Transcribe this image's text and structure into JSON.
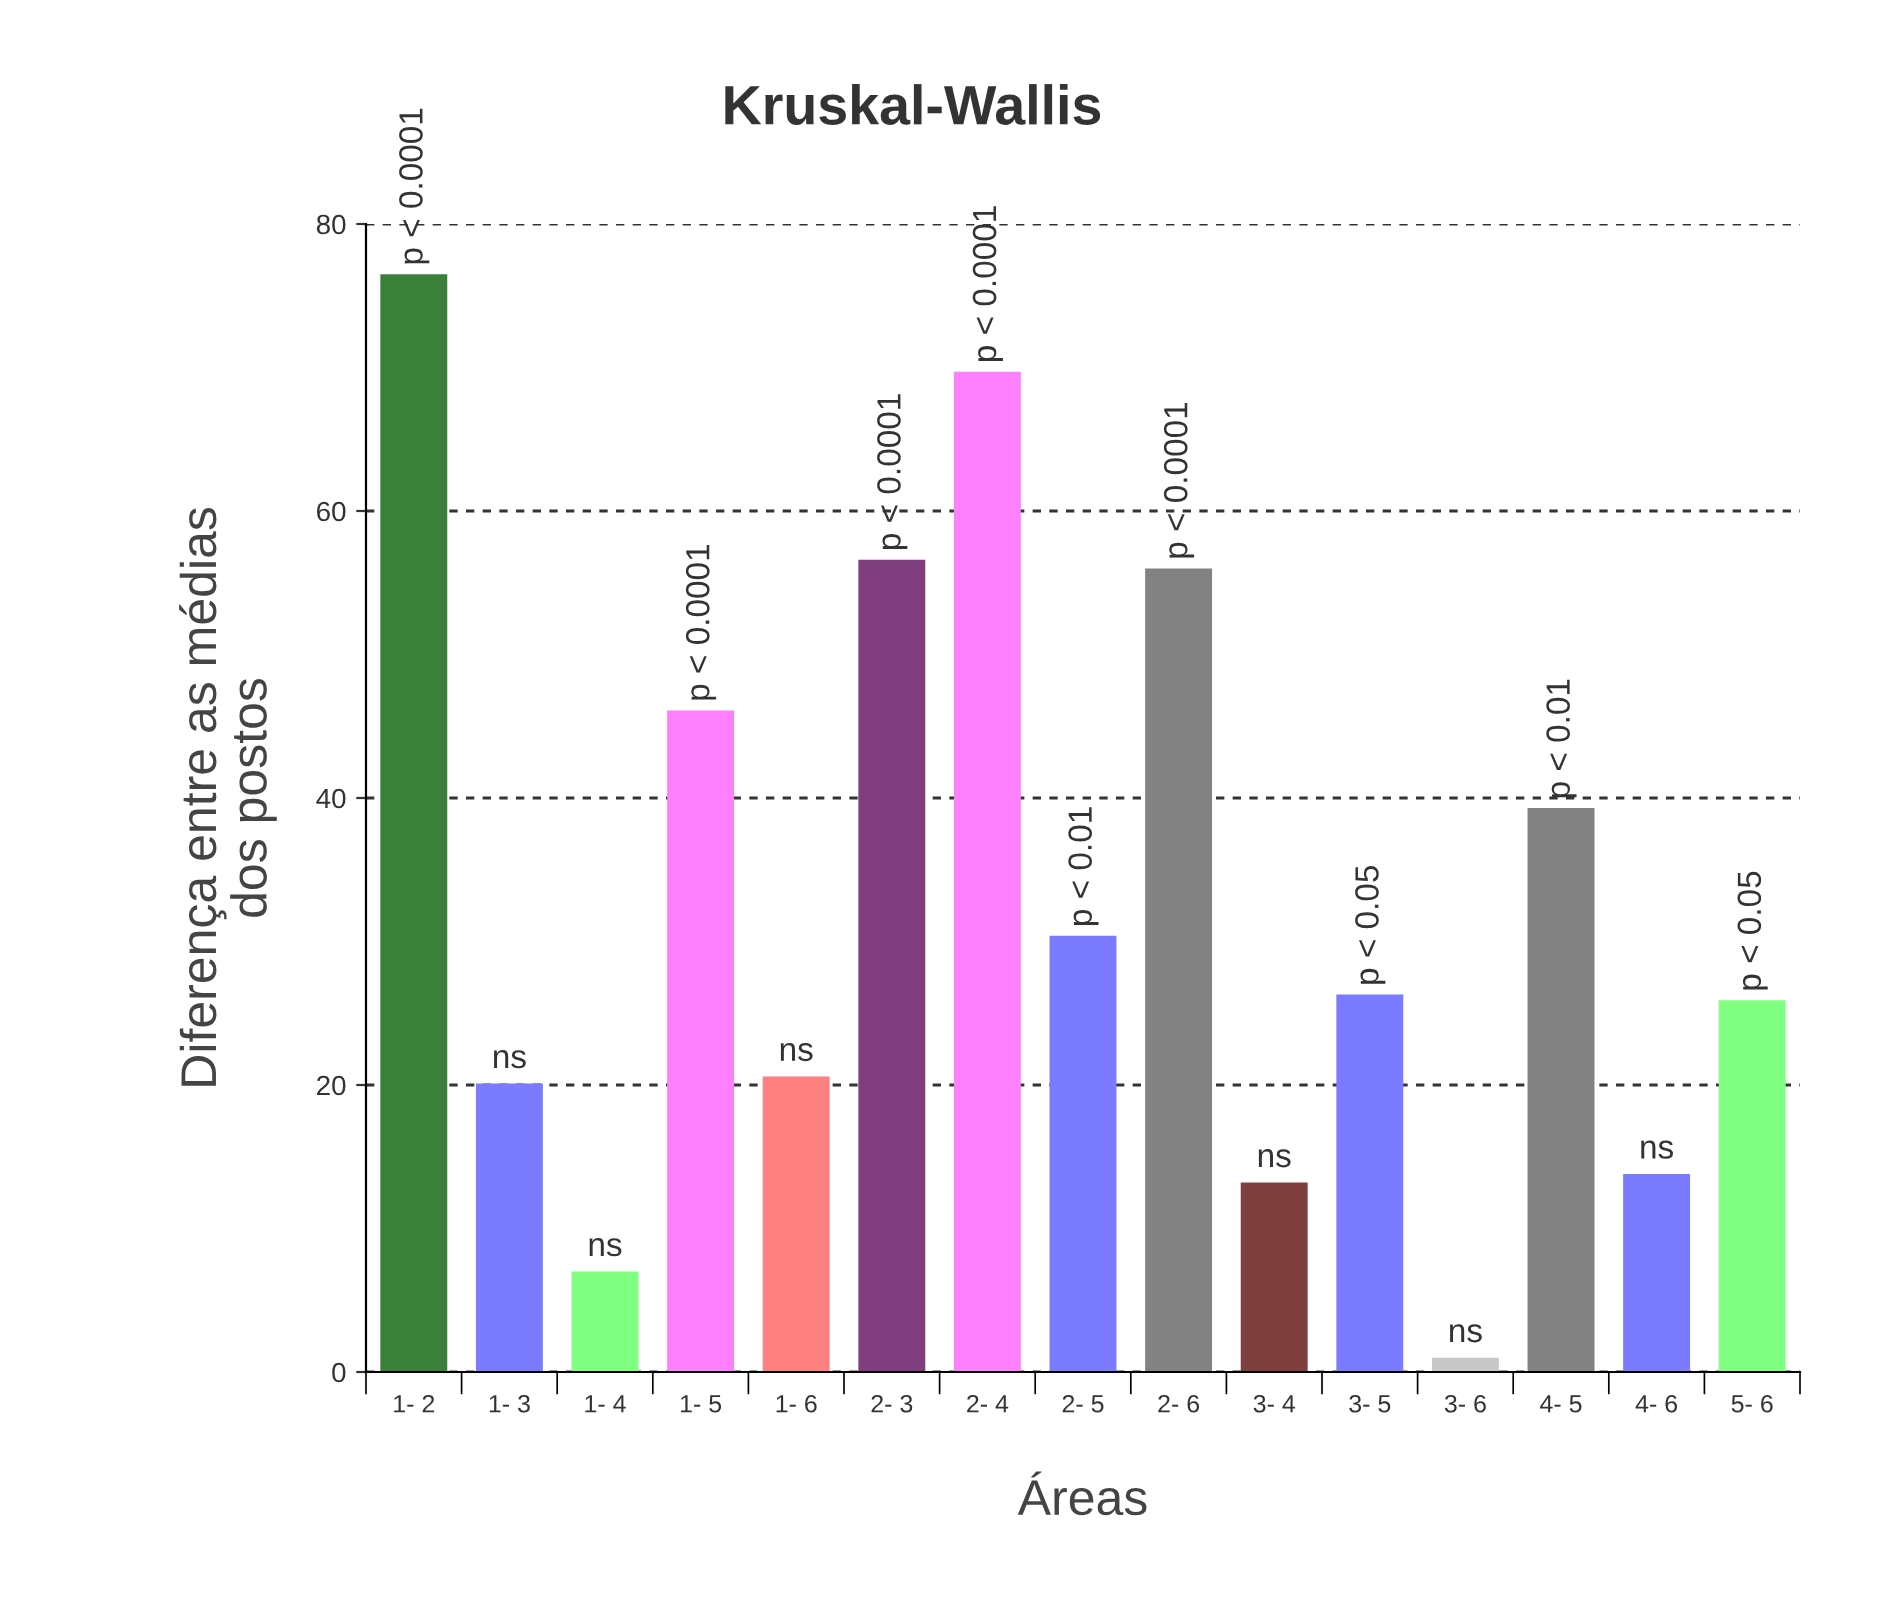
{
  "chart_data": {
    "type": "bar",
    "title": "Kruskal-Wallis",
    "xlabel": "Áreas",
    "ylabel": "Diferença entre as médias\ndos postos",
    "categories": [
      "1- 2",
      "1- 3",
      "1- 4",
      "1- 5",
      "1- 6",
      "2- 3",
      "2- 4",
      "2- 5",
      "2- 6",
      "3- 4",
      "3- 5",
      "3- 6",
      "4- 5",
      "4- 6",
      "5- 6"
    ],
    "values": [
      76.5,
      20.1,
      7.0,
      46.1,
      20.6,
      56.6,
      69.7,
      30.4,
      56.0,
      13.2,
      26.3,
      1.0,
      39.3,
      13.8,
      25.9
    ],
    "colors": [
      "#3a7f3a",
      "#7b7bff",
      "#80ff80",
      "#ff80ff",
      "#ff8080",
      "#7f3f7f",
      "#ff80ff",
      "#7b7bff",
      "#828282",
      "#7f3f3f",
      "#7b7bff",
      "#c8c8c8",
      "#828282",
      "#7b7bff",
      "#80ff80"
    ],
    "value_labels": [
      "p < 0.0001",
      "ns",
      "ns",
      "p < 0.0001",
      "ns",
      "p < 0.0001",
      "p < 0.0001",
      "p < 0.01",
      "p < 0.0001",
      "ns",
      "p < 0.05",
      "ns",
      "p < 0.01",
      "ns",
      "p < 0.05"
    ],
    "ylim": [
      0,
      80
    ],
    "yticks": [
      0,
      20,
      40,
      60,
      80
    ],
    "grid": "y"
  }
}
